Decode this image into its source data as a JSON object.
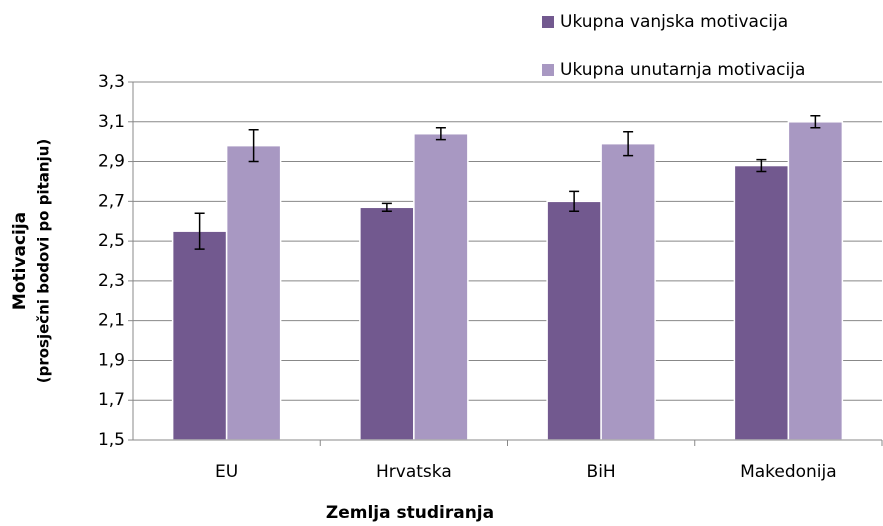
{
  "chart_data": {
    "type": "bar",
    "y_label": [
      "Motivacija",
      "(prosječni bodovi po pitanju)"
    ],
    "x_label": "Zemlja studiranja",
    "categories": [
      "EU",
      "Hrvatska",
      "BiH",
      "Makedonija"
    ],
    "series": [
      {
        "name": "Ukupna vanjska motivacija",
        "color": "#72598f",
        "values": [
          2.55,
          2.67,
          2.7,
          2.88
        ],
        "errors": [
          0.09,
          0.02,
          0.05,
          0.03
        ]
      },
      {
        "name": "Ukupna unutarnja motivacija",
        "color": "#a898c2",
        "values": [
          2.98,
          3.04,
          2.99,
          3.1
        ],
        "errors": [
          0.08,
          0.03,
          0.06,
          0.03
        ]
      }
    ],
    "ylim": [
      1.5,
      3.3
    ],
    "yticks": [
      {
        "value": 1.5,
        "label": "1,5"
      },
      {
        "value": 1.7,
        "label": "1,7"
      },
      {
        "value": 1.9,
        "label": "1,9"
      },
      {
        "value": 2.1,
        "label": "2,1"
      },
      {
        "value": 2.3,
        "label": "2,3"
      },
      {
        "value": 2.5,
        "label": "2,5"
      },
      {
        "value": 2.7,
        "label": "2,7"
      },
      {
        "value": 2.9,
        "label": "2,9"
      },
      {
        "value": 3.1,
        "label": "3,1"
      },
      {
        "value": 3.3,
        "label": "3,3"
      }
    ],
    "grid": true,
    "legend": "top-right"
  }
}
